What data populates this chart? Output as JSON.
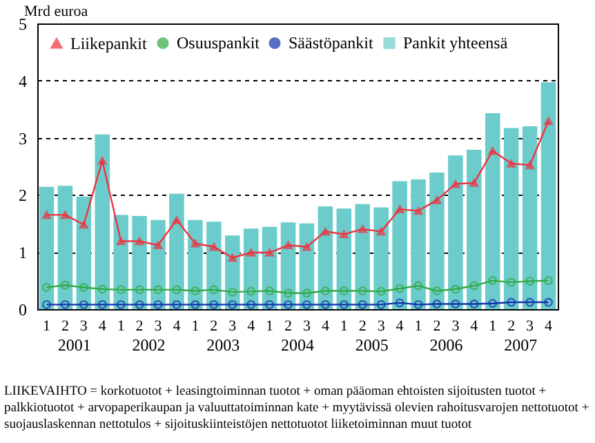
{
  "chart_data": {
    "type": "bar",
    "ylabel": "Mrd euroa",
    "categories": [
      "1",
      "2",
      "3",
      "4",
      "1",
      "2",
      "3",
      "4",
      "1",
      "2",
      "3",
      "4",
      "1",
      "2",
      "3",
      "4",
      "1",
      "2",
      "3",
      "4",
      "1",
      "2",
      "3",
      "4",
      "1",
      "2",
      "3",
      "4"
    ],
    "series": [
      {
        "name": "Liikepankit",
        "type": "line",
        "marker": "triangle",
        "color": "#ee3340",
        "values": [
          1.65,
          1.65,
          1.48,
          2.6,
          1.19,
          1.19,
          1.12,
          1.56,
          1.15,
          1.09,
          0.9,
          0.99,
          0.99,
          1.12,
          1.09,
          1.36,
          1.31,
          1.4,
          1.36,
          1.75,
          1.72,
          1.91,
          2.19,
          2.21,
          2.77,
          2.55,
          2.52,
          3.29
        ]
      },
      {
        "name": "Osuuspankit",
        "type": "line",
        "marker": "circle",
        "color": "#33aa44",
        "values": [
          0.38,
          0.42,
          0.38,
          0.35,
          0.34,
          0.34,
          0.34,
          0.34,
          0.32,
          0.34,
          0.3,
          0.31,
          0.32,
          0.28,
          0.28,
          0.32,
          0.32,
          0.32,
          0.31,
          0.36,
          0.41,
          0.32,
          0.35,
          0.41,
          0.5,
          0.47,
          0.49,
          0.5
        ]
      },
      {
        "name": "Säästöpankit",
        "type": "line",
        "marker": "circle",
        "color": "#1133aa",
        "values": [
          0.08,
          0.08,
          0.08,
          0.08,
          0.08,
          0.08,
          0.08,
          0.08,
          0.08,
          0.08,
          0.08,
          0.08,
          0.08,
          0.08,
          0.08,
          0.08,
          0.08,
          0.08,
          0.08,
          0.11,
          0.08,
          0.09,
          0.09,
          0.09,
          0.1,
          0.12,
          0.12,
          0.12
        ]
      },
      {
        "name": "Pankit yhteensä",
        "color": "#6ccccc",
        "values": [
          2.14,
          2.16,
          1.97,
          3.06,
          1.65,
          1.63,
          1.56,
          2.02,
          1.56,
          1.53,
          1.29,
          1.41,
          1.44,
          1.52,
          1.5,
          1.8,
          1.76,
          1.84,
          1.78,
          2.24,
          2.27,
          2.39,
          2.69,
          2.79,
          3.43,
          3.17,
          3.2,
          3.97
        ]
      }
    ],
    "ylim": [
      0,
      5
    ],
    "yticks": [
      0,
      1,
      2,
      3,
      4,
      5
    ],
    "grid": "y",
    "legend": "top left",
    "annotations": [
      "2001",
      "2002",
      "2003",
      "2004",
      "2005",
      "2006",
      "2007",
      "LIIKEVAIHTO = korkotuotot + leasingtoiminnan tuotot + oman pääoman ehtoisten sijoitusten tuotot + palkkiotuotot + arvopaperikaupan ja valuuttatoiminnan kate + myytävissä olevien rahoitusvarojen nettotuotot + suojauslaskennan nettotulos + sijoituskiinteistöjen nettotuotot liiketoiminnan muut tuotot"
    ]
  }
}
